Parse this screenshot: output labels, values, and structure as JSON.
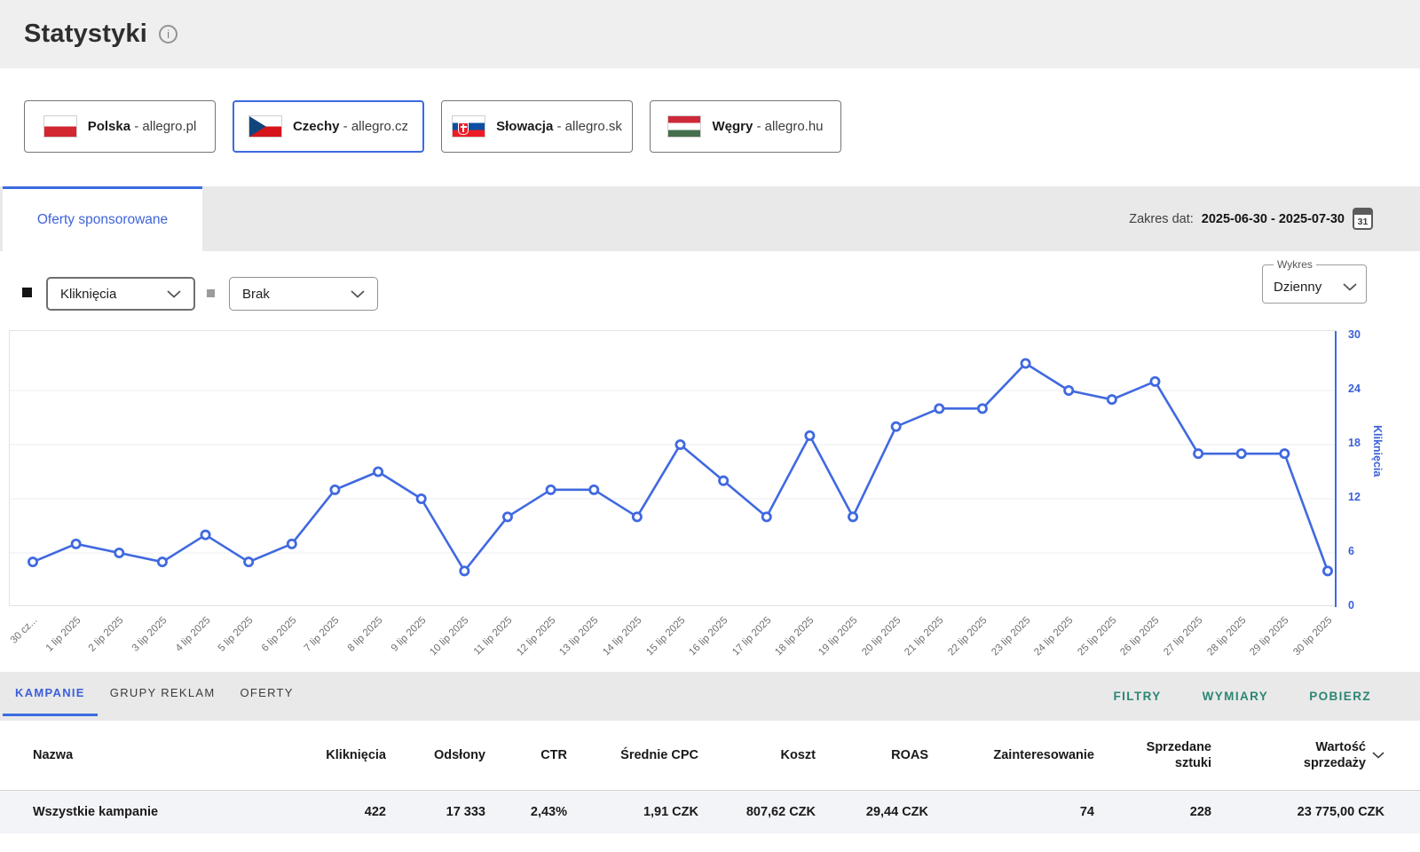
{
  "colors": {
    "accent_blue": "#4069e0",
    "teal": "#2b8674",
    "line": "#4069e0"
  },
  "header": {
    "title": "Statystyki",
    "info_icon": "i"
  },
  "countries": [
    {
      "name": "Polska",
      "suffix": "- allegro.pl",
      "selected": false
    },
    {
      "name": "Czechy",
      "suffix": "- allegro.cz",
      "selected": true
    },
    {
      "name": "Słowacja",
      "suffix": "- allegro.sk",
      "selected": false
    },
    {
      "name": "Węgry",
      "suffix": "- allegro.hu",
      "selected": false
    }
  ],
  "main_tab": {
    "label": "Oferty sponsorowane"
  },
  "date_range": {
    "label": "Zakres dat:",
    "value": "2025-06-30 - 2025-07-30",
    "calendar_day": "31"
  },
  "controls": {
    "metric_primary": "Kliknięcia",
    "metric_secondary": "Brak",
    "chart_group_label": "Wykres",
    "chart_interval": "Dzienny"
  },
  "chart_data": {
    "type": "line",
    "x": [
      "30 cz...",
      "1 lip 2025",
      "2 lip 2025",
      "3 lip 2025",
      "4 lip 2025",
      "5 lip 2025",
      "6 lip 2025",
      "7 lip 2025",
      "8 lip 2025",
      "9 lip 2025",
      "10 lip 2025",
      "11 lip 2025",
      "12 lip 2025",
      "13 lip 2025",
      "14 lip 2025",
      "15 lip 2025",
      "16 lip 2025",
      "17 lip 2025",
      "18 lip 2025",
      "19 lip 2025",
      "20 lip 2025",
      "21 lip 2025",
      "22 lip 2025",
      "23 lip 2025",
      "24 lip 2025",
      "25 lip 2025",
      "26 lip 2025",
      "27 lip 2025",
      "28 lip 2025",
      "29 lip 2025",
      "30 lip 2025"
    ],
    "series": [
      {
        "name": "Kliknięcia",
        "values": [
          5,
          7,
          6,
          5,
          8,
          5,
          7,
          13,
          15,
          12,
          4,
          10,
          13,
          13,
          10,
          18,
          14,
          10,
          19,
          10,
          20,
          22,
          22,
          27,
          24,
          23,
          25,
          17,
          17,
          17,
          4
        ]
      }
    ],
    "ylabel": "Kliknięcia",
    "ylim": [
      0,
      30
    ],
    "yticks": [
      0,
      6,
      12,
      18,
      24,
      30
    ],
    "grid": true,
    "legend_position": "none",
    "line_color": "#4069e0",
    "marker": "open-circle"
  },
  "bottom_tabs": [
    {
      "label": "KAMPANIE",
      "active": true
    },
    {
      "label": "GRUPY REKLAM",
      "active": false
    },
    {
      "label": "OFERTY",
      "active": false
    }
  ],
  "table_actions": [
    {
      "label": "FILTRY"
    },
    {
      "label": "WYMIARY"
    },
    {
      "label": "POBIERZ"
    }
  ],
  "table": {
    "columns": [
      "Nazwa",
      "Kliknięcia",
      "Odsłony",
      "CTR",
      "Średnie CPC",
      "Koszt",
      "ROAS",
      "Zainteresowanie",
      "Sprzedane sztuki",
      "Wartość sprzedaży"
    ],
    "rows": [
      [
        "Wszystkie kampanie",
        "422",
        "17 333",
        "2,43%",
        "1,91 CZK",
        "807,62 CZK",
        "29,44 CZK",
        "74",
        "228",
        "23 775,00 CZK"
      ]
    ]
  }
}
